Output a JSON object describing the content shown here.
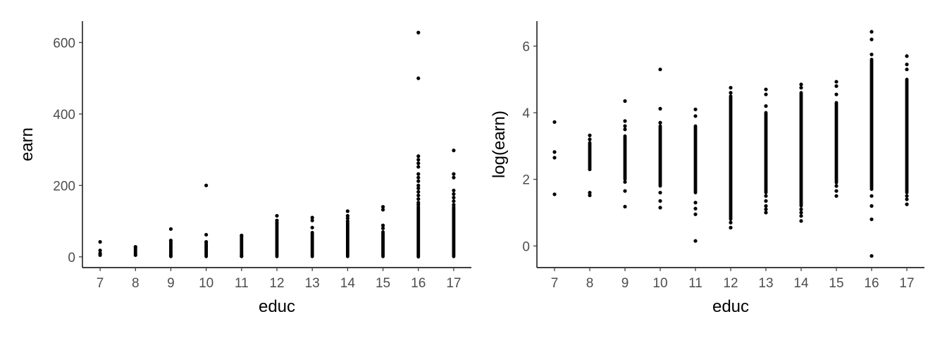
{
  "chart_data": [
    {
      "type": "scatter",
      "title": "",
      "xlabel": "educ",
      "ylabel": "earn",
      "xlim": [
        6.5,
        17.5
      ],
      "ylim": [
        -30,
        660
      ],
      "xticks": [
        "7",
        "8",
        "9",
        "10",
        "11",
        "12",
        "13",
        "14",
        "15",
        "16",
        "17"
      ],
      "yticks": [
        "0",
        "200",
        "400",
        "600"
      ],
      "grid": false,
      "point_color": "#000000",
      "dense_ranges": [
        {
          "x": 8,
          "y": [
            8,
            25
          ]
        },
        {
          "x": 9,
          "y": [
            1,
            42
          ]
        },
        {
          "x": 10,
          "y": [
            1,
            38
          ]
        },
        {
          "x": 11,
          "y": [
            1,
            58
          ]
        },
        {
          "x": 12,
          "y": [
            1,
            92
          ]
        },
        {
          "x": 13,
          "y": [
            1,
            68
          ]
        },
        {
          "x": 14,
          "y": [
            1,
            95
          ]
        },
        {
          "x": 15,
          "y": [
            1,
            70
          ]
        },
        {
          "x": 16,
          "y": [
            0,
            140
          ]
        },
        {
          "x": 17,
          "y": [
            1,
            140
          ]
        }
      ],
      "points": [
        [
          7,
          42
        ],
        [
          7,
          18
        ],
        [
          7,
          10
        ],
        [
          7,
          5
        ],
        [
          8,
          28
        ],
        [
          8,
          5
        ],
        [
          9,
          78
        ],
        [
          9,
          46
        ],
        [
          9,
          3
        ],
        [
          10,
          200
        ],
        [
          10,
          62
        ],
        [
          10,
          42
        ],
        [
          11,
          60
        ],
        [
          11,
          2
        ],
        [
          12,
          115
        ],
        [
          12,
          102
        ],
        [
          12,
          96
        ],
        [
          13,
          110
        ],
        [
          13,
          102
        ],
        [
          13,
          82
        ],
        [
          14,
          128
        ],
        [
          14,
          115
        ],
        [
          14,
          108
        ],
        [
          14,
          100
        ],
        [
          15,
          140
        ],
        [
          15,
          132
        ],
        [
          15,
          88
        ],
        [
          15,
          80
        ],
        [
          16,
          628
        ],
        [
          16,
          500
        ],
        [
          16,
          282
        ],
        [
          16,
          272
        ],
        [
          16,
          262
        ],
        [
          16,
          252
        ],
        [
          16,
          232
        ],
        [
          16,
          222
        ],
        [
          16,
          212
        ],
        [
          16,
          200
        ],
        [
          16,
          192
        ],
        [
          16,
          182
        ],
        [
          16,
          172
        ],
        [
          16,
          162
        ],
        [
          16,
          152
        ],
        [
          16,
          146
        ],
        [
          17,
          298
        ],
        [
          17,
          232
        ],
        [
          17,
          222
        ],
        [
          17,
          186
        ],
        [
          17,
          176
        ],
        [
          17,
          166
        ],
        [
          17,
          156
        ],
        [
          17,
          146
        ]
      ]
    },
    {
      "type": "scatter",
      "title": "",
      "xlabel": "educ",
      "ylabel": "log(earn)",
      "xlim": [
        6.5,
        17.5
      ],
      "ylim": [
        -0.65,
        6.75
      ],
      "xticks": [
        "7",
        "8",
        "9",
        "10",
        "11",
        "12",
        "13",
        "14",
        "15",
        "16",
        "17"
      ],
      "yticks": [
        "0",
        "2",
        "4",
        "6"
      ],
      "grid": false,
      "point_color": "#000000",
      "dense_ranges": [
        {
          "x": 8,
          "y": [
            2.35,
            3.1
          ]
        },
        {
          "x": 9,
          "y": [
            2.0,
            3.3
          ]
        },
        {
          "x": 10,
          "y": [
            1.8,
            3.6
          ]
        },
        {
          "x": 11,
          "y": [
            1.6,
            3.6
          ]
        },
        {
          "x": 12,
          "y": [
            0.8,
            4.5
          ]
        },
        {
          "x": 13,
          "y": [
            1.6,
            4.0
          ]
        },
        {
          "x": 14,
          "y": [
            1.2,
            4.6
          ]
        },
        {
          "x": 15,
          "y": [
            1.9,
            4.3
          ]
        },
        {
          "x": 16,
          "y": [
            1.7,
            5.6
          ]
        },
        {
          "x": 17,
          "y": [
            1.6,
            5.0
          ]
        }
      ],
      "points": [
        [
          7,
          3.72
        ],
        [
          7,
          2.82
        ],
        [
          7,
          2.65
        ],
        [
          7,
          1.55
        ],
        [
          8,
          3.32
        ],
        [
          8,
          3.2
        ],
        [
          8,
          2.3
        ],
        [
          8,
          1.6
        ],
        [
          8,
          1.52
        ],
        [
          9,
          4.35
        ],
        [
          9,
          3.75
        ],
        [
          9,
          3.6
        ],
        [
          9,
          3.5
        ],
        [
          9,
          1.92
        ],
        [
          9,
          1.65
        ],
        [
          9,
          1.18
        ],
        [
          10,
          5.3
        ],
        [
          10,
          4.12
        ],
        [
          10,
          3.7
        ],
        [
          10,
          1.6
        ],
        [
          10,
          1.35
        ],
        [
          10,
          1.15
        ],
        [
          11,
          4.1
        ],
        [
          11,
          3.9
        ],
        [
          11,
          1.3
        ],
        [
          11,
          1.12
        ],
        [
          11,
          0.95
        ],
        [
          11,
          0.15
        ],
        [
          12,
          4.75
        ],
        [
          12,
          4.6
        ],
        [
          12,
          0.7
        ],
        [
          12,
          0.55
        ],
        [
          13,
          4.7
        ],
        [
          13,
          4.55
        ],
        [
          13,
          4.2
        ],
        [
          13,
          1.5
        ],
        [
          13,
          1.35
        ],
        [
          13,
          1.2
        ],
        [
          13,
          1.1
        ],
        [
          13,
          1.0
        ],
        [
          14,
          4.85
        ],
        [
          14,
          4.75
        ],
        [
          14,
          1.1
        ],
        [
          14,
          1.0
        ],
        [
          14,
          0.9
        ],
        [
          14,
          0.75
        ],
        [
          15,
          4.93
        ],
        [
          15,
          4.8
        ],
        [
          15,
          4.55
        ],
        [
          15,
          1.8
        ],
        [
          15,
          1.65
        ],
        [
          15,
          1.5
        ],
        [
          16,
          6.43
        ],
        [
          16,
          6.2
        ],
        [
          16,
          5.75
        ],
        [
          16,
          1.5
        ],
        [
          16,
          1.2
        ],
        [
          16,
          0.8
        ],
        [
          16,
          -0.3
        ],
        [
          17,
          5.7
        ],
        [
          17,
          5.45
        ],
        [
          17,
          5.3
        ],
        [
          17,
          1.5
        ],
        [
          17,
          1.4
        ],
        [
          17,
          1.25
        ]
      ]
    }
  ]
}
